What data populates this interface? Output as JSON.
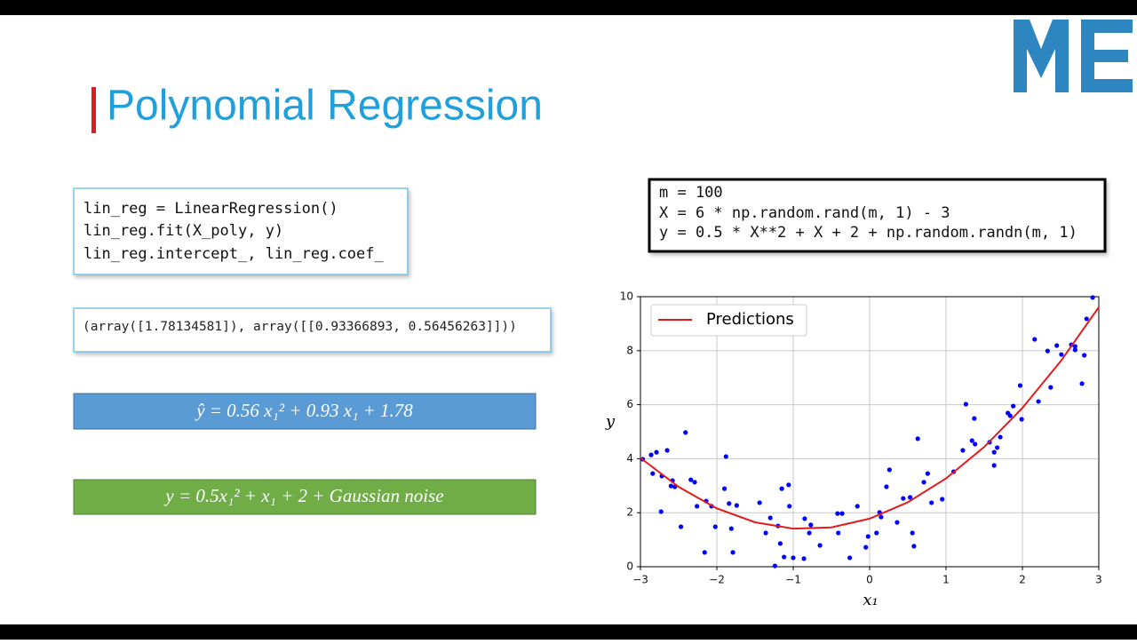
{
  "title": "Polynomial Regression",
  "code_fit": [
    "lin_reg = LinearRegression()",
    "lin_reg.fit(X_poly, y)",
    "lin_reg.intercept_, lin_reg.coef_"
  ],
  "output": "(array([1.78134581]), array([[0.93366893, 0.56456263]]))",
  "equation_fit": "ŷ = 0.56 x₁² + 0.93 x₁ + 1.78",
  "equation_true": "y = 0.5x₁² +  x₁ + 2 +  Gaussian noise",
  "code_data": [
    "m = 100",
    "X = 6 * np.random.rand(m, 1) - 3",
    "y = 0.5 * X**2 + X + 2 + np.random.randn(m, 1)"
  ],
  "chart_data": {
    "type": "scatter",
    "xlabel": "x₁",
    "ylabel": "y",
    "color": "#0000ff",
    "x": [
      -2.97,
      -2.86,
      -2.79,
      -2.65,
      -2.84,
      -2.72,
      -2.73,
      -2.58,
      -2.6,
      -2.55,
      -2.41,
      -2.47,
      -2.34,
      -2.29,
      -2.26,
      -2.16,
      -2.14,
      -2.07,
      -2.02,
      -1.88,
      -1.9,
      -1.84,
      -1.81,
      -1.79,
      -1.74,
      -1.44,
      -1.36,
      -1.3,
      -1.24,
      -1.2,
      -1.17,
      -1.15,
      -1.12,
      -1.06,
      -1.05,
      -1.0,
      -0.86,
      -0.85,
      -0.79,
      -0.77,
      -0.65,
      -0.42,
      -0.36,
      -0.41,
      -0.26,
      -0.16,
      -0.05,
      -0.02,
      0.09,
      0.13,
      0.15,
      0.22,
      0.26,
      0.36,
      0.44,
      0.53,
      0.56,
      0.58,
      0.63,
      0.71,
      0.76,
      0.81,
      0.95,
      1.1,
      1.22,
      1.26,
      1.34,
      1.38,
      1.37,
      1.57,
      1.63,
      1.63,
      1.67,
      1.71,
      1.81,
      1.84,
      1.88,
      1.99,
      1.97,
      2.16,
      2.21,
      2.33,
      2.37,
      2.45,
      2.51,
      2.64,
      2.69,
      2.69,
      2.78,
      2.81,
      2.84,
      2.92
    ],
    "y": [
      3.98,
      4.14,
      4.24,
      4.31,
      3.45,
      3.36,
      2.04,
      3.19,
      2.99,
      2.96,
      4.97,
      1.48,
      3.22,
      3.13,
      2.24,
      0.53,
      2.43,
      2.24,
      1.48,
      4.08,
      2.89,
      2.34,
      1.41,
      0.53,
      2.27,
      2.37,
      1.25,
      1.81,
      0.03,
      1.51,
      0.86,
      2.89,
      0.36,
      3.03,
      2.24,
      0.33,
      0.3,
      1.78,
      1.25,
      1.55,
      0.79,
      1.97,
      1.97,
      1.25,
      0.33,
      2.24,
      0.72,
      1.12,
      1.25,
      2.01,
      1.84,
      2.96,
      3.59,
      1.64,
      2.53,
      2.57,
      1.25,
      0.76,
      4.74,
      3.13,
      3.45,
      2.37,
      2.5,
      3.52,
      4.31,
      6.02,
      4.67,
      4.54,
      5.49,
      4.61,
      3.75,
      4.24,
      4.41,
      4.8,
      5.69,
      5.59,
      5.95,
      5.46,
      6.71,
      8.42,
      6.12,
      7.99,
      6.64,
      8.19,
      7.86,
      8.22,
      8.16,
      8.03,
      6.78,
      7.83,
      9.18,
      9.97
    ],
    "fit": {
      "name": "Predictions",
      "color": "#e31a1c",
      "x": [
        -3,
        -2.5,
        -2,
        -1.5,
        -1,
        -0.5,
        0,
        0.5,
        1,
        1.5,
        2,
        2.5,
        3
      ],
      "y": [
        4.03,
        2.955,
        2.16,
        1.645,
        1.41,
        1.455,
        1.78,
        2.385,
        3.27,
        4.435,
        5.88,
        7.605,
        9.61
      ]
    },
    "xlim": [
      -3,
      3
    ],
    "ylim": [
      0,
      10
    ],
    "xticks": [
      {
        "value": -3,
        "label": "−3"
      },
      {
        "value": -2,
        "label": "−2"
      },
      {
        "value": -1,
        "label": "−1"
      },
      0,
      1,
      2,
      3
    ],
    "yticks": [
      0,
      2,
      4,
      6,
      8,
      10
    ],
    "grid": true,
    "legend": "upper left"
  }
}
